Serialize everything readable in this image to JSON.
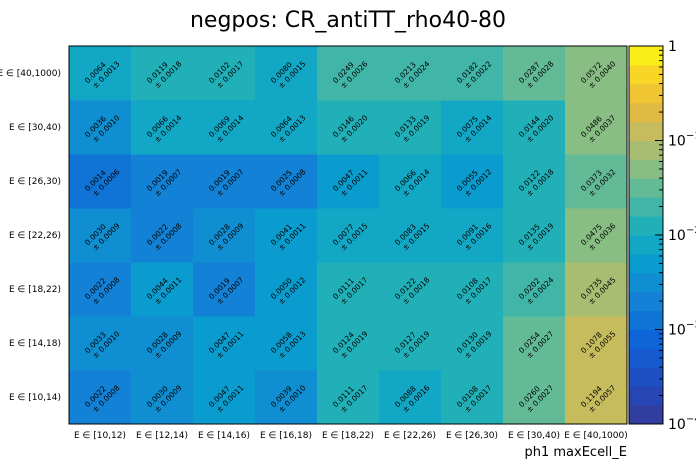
{
  "chart_data": {
    "type": "heatmap",
    "title": "negpos: CR_antiTT_rho40-80",
    "xlabel": "ph1 maxEcell_E",
    "ylabel": "",
    "x_categories": [
      "E ∈ [10,12)",
      "E ∈ [12,14)",
      "E ∈ [14,16)",
      "E ∈ [16,18)",
      "E ∈ [18,22)",
      "E ∈ [22,26)",
      "E ∈ [26,30)",
      "E ∈ [30,40)",
      "E ∈ [40,1000)"
    ],
    "y_categories": [
      "E ∈ [10,14)",
      "E ∈ [14,18)",
      "E ∈ [18,22)",
      "E ∈ [22,26)",
      "E ∈ [26,30)",
      "E ∈ [30,40)",
      "E ∈ [40,1000)"
    ],
    "values": [
      [
        "0.0022",
        "0.0030",
        "0.0047",
        "0.0039",
        "0.0111",
        "0.0088",
        "0.0108",
        "0.0260",
        "0.1194"
      ],
      [
        "0.0033",
        "0.0028",
        "0.0047",
        "0.0058",
        "0.0124",
        "0.0127",
        "0.0130",
        "0.0254",
        "0.1078"
      ],
      [
        "0.0022",
        "0.0044",
        "0.0019",
        "0.0050",
        "0.0111",
        "0.0122",
        "0.0108",
        "0.0202",
        "0.0735"
      ],
      [
        "0.0030",
        "0.0022",
        "0.0028",
        "0.0041",
        "0.0077",
        "0.0083",
        "0.0091",
        "0.0135",
        "0.0475"
      ],
      [
        "0.0014",
        "0.0019",
        "0.0019",
        "0.0025",
        "0.0047",
        "0.0066",
        "0.0055",
        "0.0122",
        "0.0373"
      ],
      [
        "0.0036",
        "0.0066",
        "0.0069",
        "0.0064",
        "0.0146",
        "0.0133",
        "0.0075",
        "0.0144",
        "0.0486"
      ],
      [
        "0.0064",
        "0.0119",
        "0.0102",
        "0.0080",
        "0.0249",
        "0.0213",
        "0.0182",
        "0.0287",
        "0.0572"
      ]
    ],
    "errors": [
      [
        "± 0.0008",
        "± 0.0009",
        "± 0.0011",
        "± 0.0010",
        "± 0.0017",
        "± 0.0016",
        "± 0.0017",
        "± 0.0027",
        "± 0.0057"
      ],
      [
        "± 0.0010",
        "± 0.0009",
        "± 0.0011",
        "± 0.0013",
        "± 0.0019",
        "± 0.0019",
        "± 0.0019",
        "± 0.0027",
        "± 0.0055"
      ],
      [
        "± 0.0008",
        "± 0.0011",
        "± 0.0007",
        "± 0.0012",
        "± 0.0017",
        "± 0.0018",
        "± 0.0017",
        "± 0.0024",
        "± 0.0045"
      ],
      [
        "± 0.0009",
        "± 0.0008",
        "± 0.0009",
        "± 0.0011",
        "± 0.0015",
        "± 0.0015",
        "± 0.0016",
        "± 0.0019",
        "± 0.0036"
      ],
      [
        "± 0.0006",
        "± 0.0007",
        "± 0.0007",
        "± 0.0008",
        "± 0.0011",
        "± 0.0014",
        "± 0.0012",
        "± 0.0018",
        "± 0.0032"
      ],
      [
        "± 0.0010",
        "± 0.0014",
        "± 0.0014",
        "± 0.0013",
        "± 0.0020",
        "± 0.0019",
        "± 0.0014",
        "± 0.0020",
        "± 0.0037"
      ],
      [
        "± 0.0013",
        "± 0.0018",
        "± 0.0017",
        "± 0.0015",
        "± 0.0026",
        "± 0.0024",
        "± 0.0022",
        "± 0.0028",
        "± 0.0040"
      ]
    ],
    "zscale": "log",
    "zlim": [
      0.0001,
      1
    ],
    "colorbar_labels": [
      {
        "base": "10",
        "exp": "−4",
        "value": 0.0001
      },
      {
        "base": "10",
        "exp": "−3",
        "value": 0.001
      },
      {
        "base": "10",
        "exp": "−2",
        "value": 0.01
      },
      {
        "base": "10",
        "exp": "−1",
        "value": 0.1
      },
      {
        "base": "1",
        "exp": "",
        "value": 1
      }
    ],
    "colorbar_placement": "right",
    "grid": false,
    "legend": "none"
  }
}
